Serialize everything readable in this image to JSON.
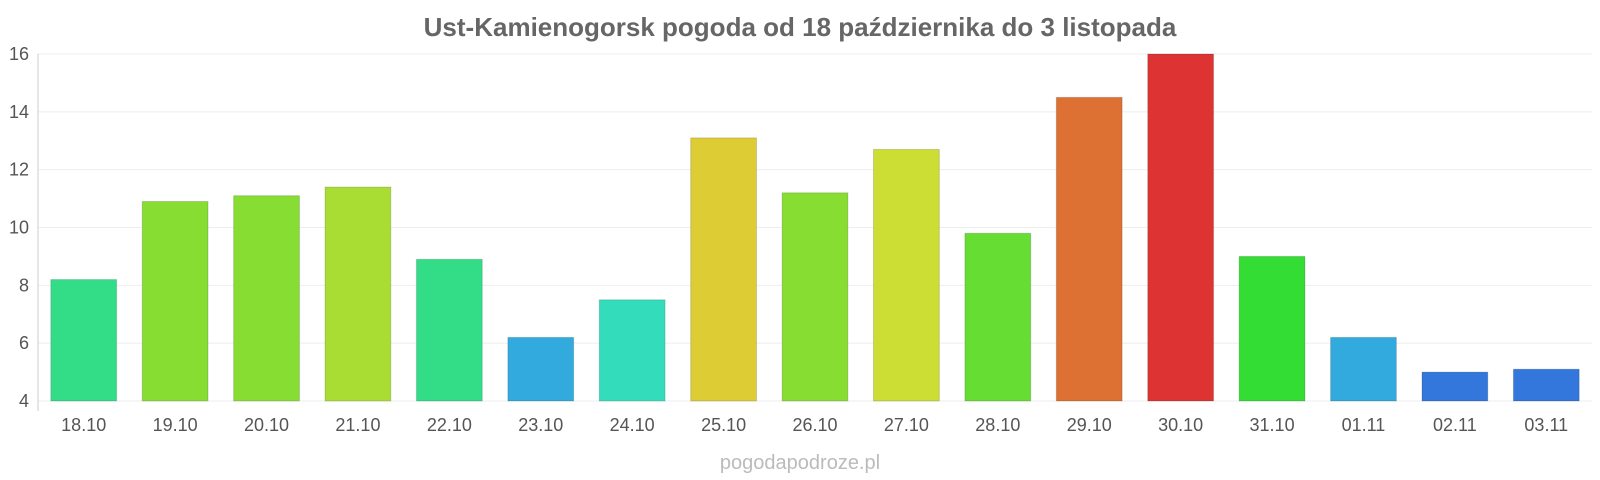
{
  "chart_data": {
    "type": "bar",
    "title": "Ust-Kamienogorsk pogoda od 18 października do 3 listopada",
    "categories": [
      "18.10",
      "19.10",
      "20.10",
      "21.10",
      "22.10",
      "23.10",
      "24.10",
      "25.10",
      "26.10",
      "27.10",
      "28.10",
      "29.10",
      "30.10",
      "31.10",
      "01.11",
      "02.11",
      "03.11"
    ],
    "values": [
      8.2,
      10.9,
      11.1,
      11.4,
      8.9,
      6.2,
      7.5,
      13.1,
      11.2,
      12.7,
      9.8,
      14.5,
      16.0,
      9.0,
      6.2,
      5.0,
      5.1
    ],
    "colors": [
      "#33dd88",
      "#88dd33",
      "#88dd33",
      "#aadd33",
      "#33dd88",
      "#33aadd",
      "#33ddbb",
      "#ddcc33",
      "#88dd33",
      "#ccdd33",
      "#66dd33",
      "#dd7033",
      "#dd3333",
      "#33dd33",
      "#33aadd",
      "#3377dd",
      "#3377dd"
    ],
    "ylim": [
      4,
      16
    ],
    "yticks": [
      4,
      6,
      8,
      10,
      12,
      14,
      16
    ],
    "grid": true,
    "legend": "none",
    "xlabel": "",
    "ylabel": ""
  },
  "footer": {
    "source": "pogodapodroze.pl"
  }
}
